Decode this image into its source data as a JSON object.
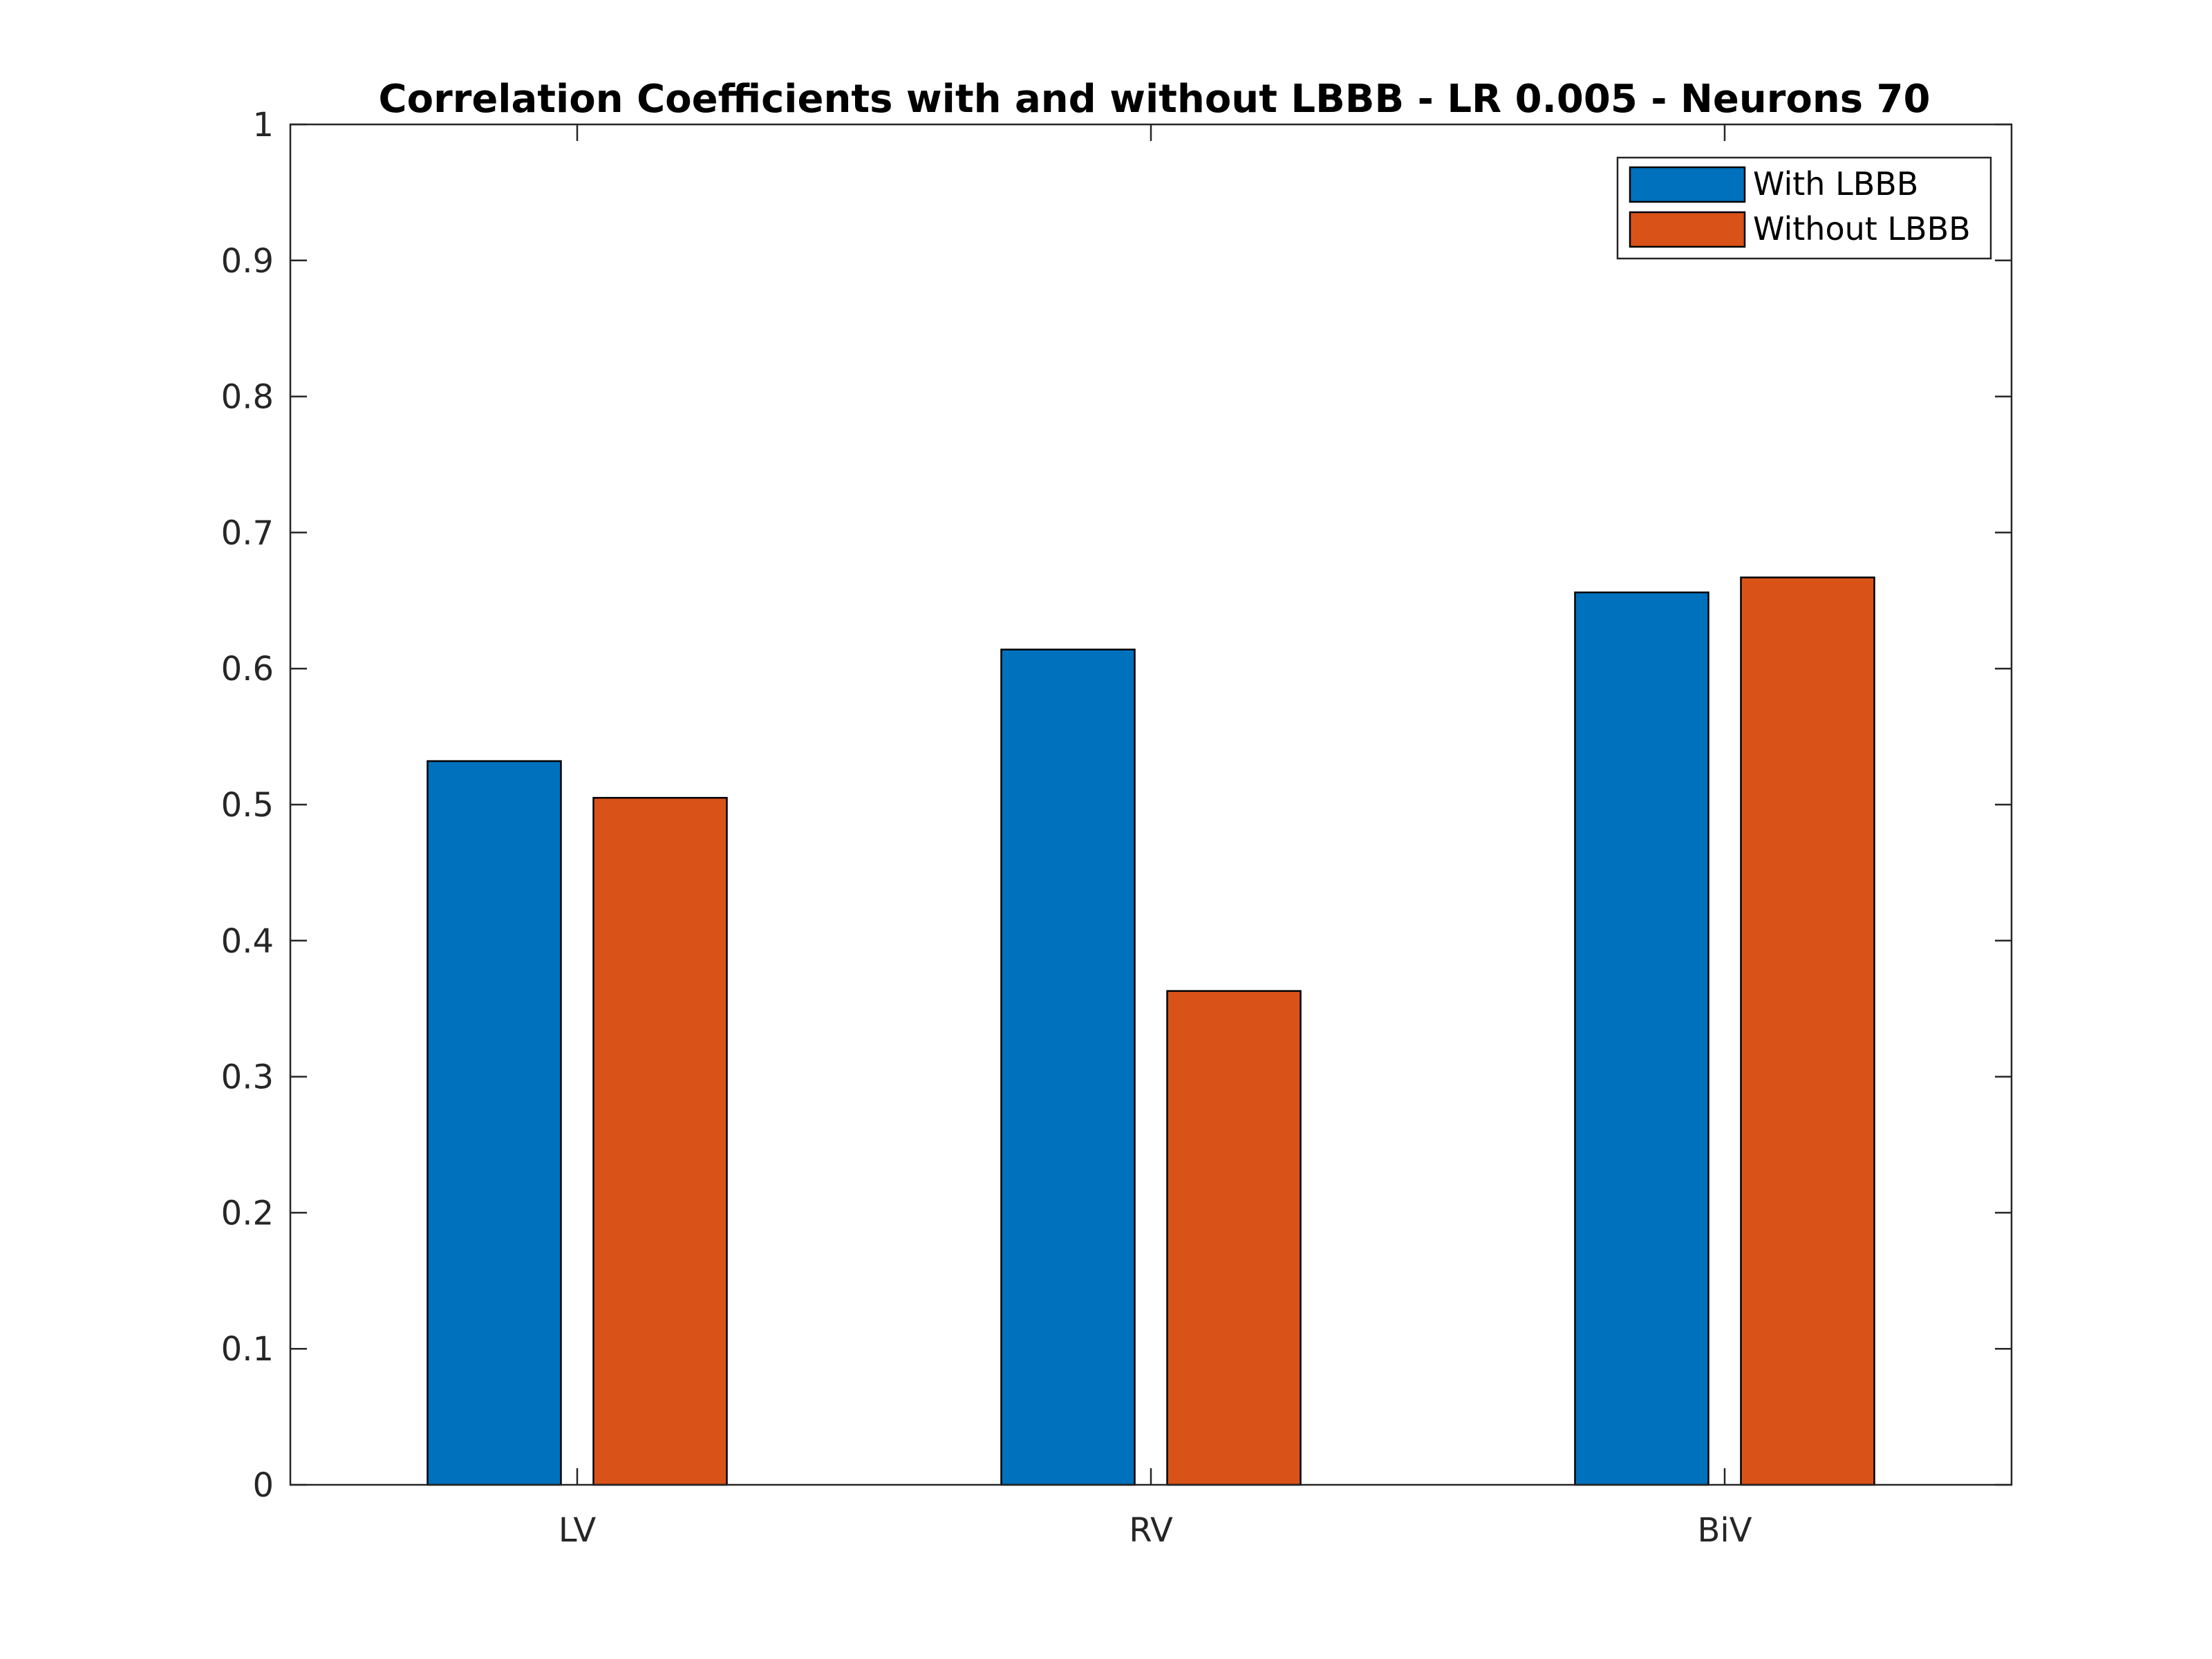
{
  "chart_data": {
    "type": "bar",
    "title": "Correlation Coefficients with and without LBBB - LR 0.005 - Neurons 70",
    "xlabel": "",
    "ylabel": "",
    "categories": [
      "LV",
      "RV",
      "BiV"
    ],
    "series": [
      {
        "name": "With LBBB",
        "values": [
          0.532,
          0.614,
          0.656
        ],
        "color": "#0072BD"
      },
      {
        "name": "Without LBBB",
        "values": [
          0.505,
          0.363,
          0.667
        ],
        "color": "#D95319"
      }
    ],
    "ylim": [
      0,
      1
    ],
    "yticks": [
      "0",
      "0.1",
      "0.2",
      "0.3",
      "0.4",
      "0.5",
      "0.6",
      "0.7",
      "0.8",
      "0.9",
      "1"
    ],
    "grid": false,
    "legend_position": "top-right"
  }
}
